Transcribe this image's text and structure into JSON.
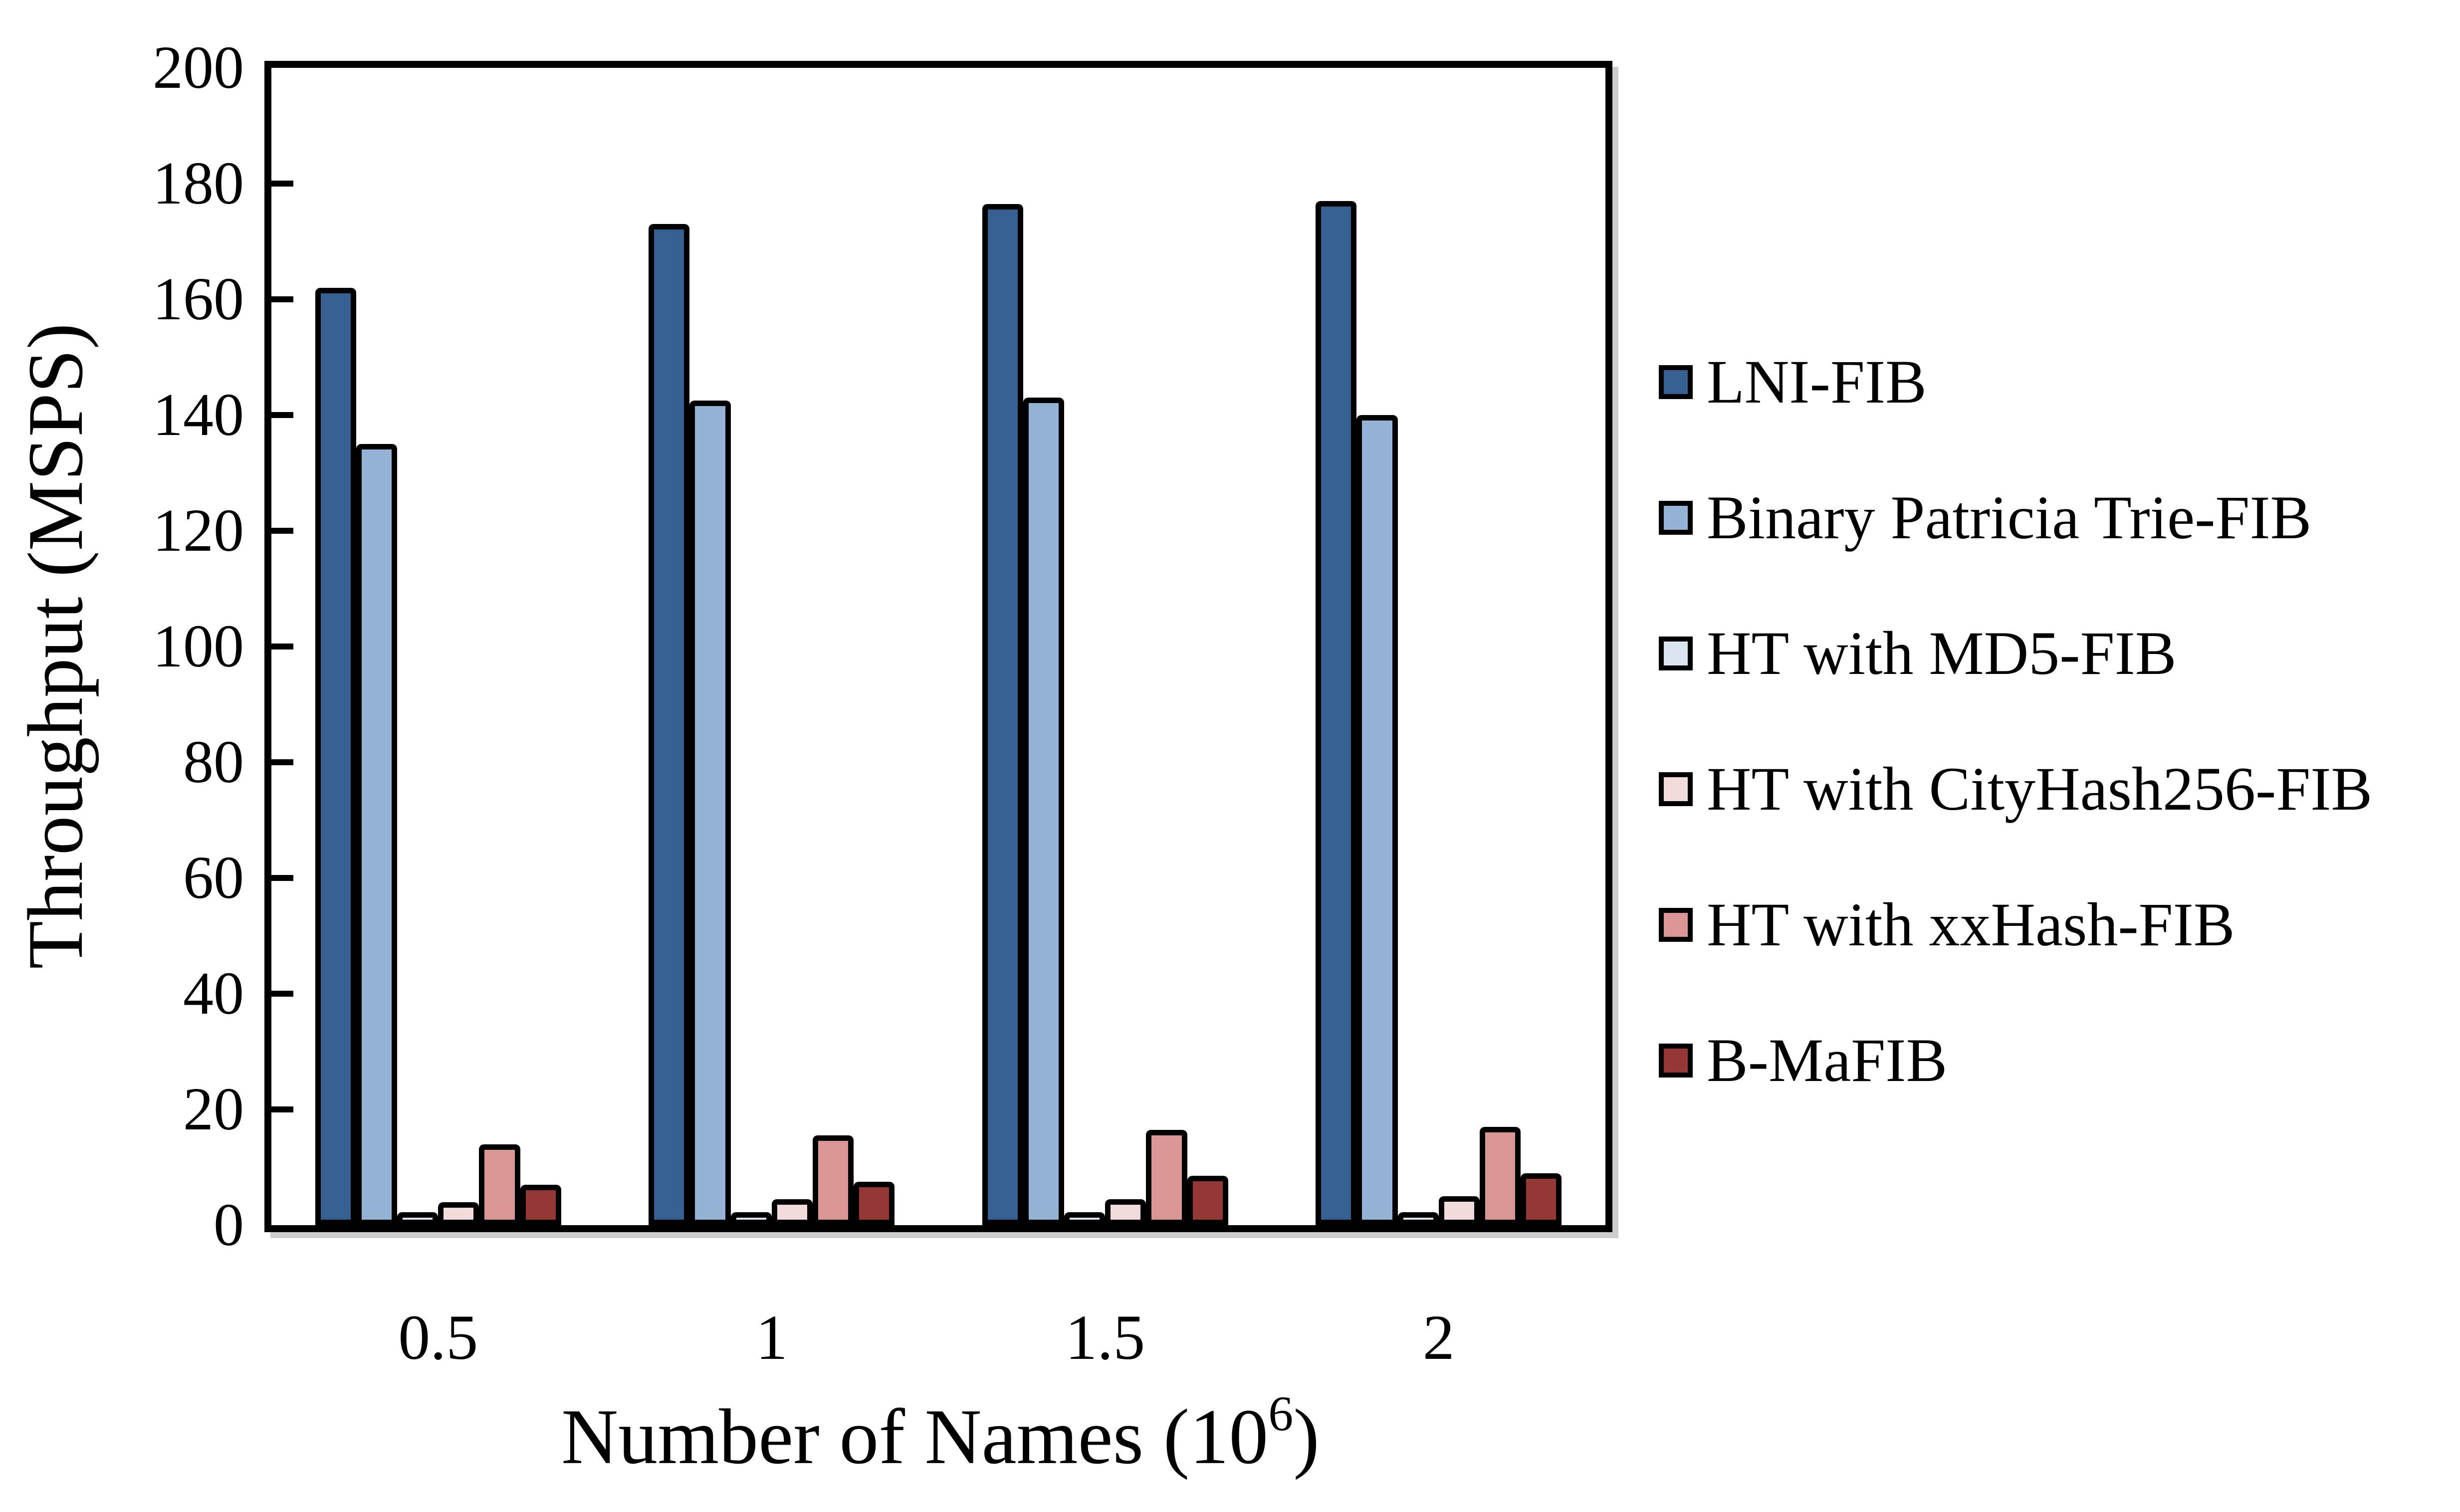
{
  "chart_data": {
    "type": "bar",
    "title": "",
    "ylabel": "Throughput  (MSPS)",
    "xlabel_prefix": "Number of Names  (10",
    "xlabel_sup": "6",
    "xlabel_suffix": ")",
    "categories": [
      "0.5",
      "1",
      "1.5",
      "2"
    ],
    "ylim": [
      0,
      200
    ],
    "ytick_step": 20,
    "grid": false,
    "legend_position": "right",
    "bar_outline_color": "#000000",
    "series": [
      {
        "name": "LNI-FIB",
        "color": "#376092",
        "values": [
          162,
          173,
          176.5,
          177
        ]
      },
      {
        "name": "Binary Patricia Trie-FIB",
        "color": "#95B3D7",
        "values": [
          135,
          142.5,
          143,
          140
        ]
      },
      {
        "name": "HT with MD5-FIB",
        "color": "#DBE5F1",
        "values": [
          1.5,
          2,
          2,
          2
        ]
      },
      {
        "name": "HT with CityHash256-FIB",
        "color": "#F2DCDB",
        "values": [
          4,
          4.5,
          4.5,
          5
        ]
      },
      {
        "name": "HT with xxHash-FIB",
        "color": "#D99694",
        "values": [
          14,
          15.5,
          16.5,
          17
        ]
      },
      {
        "name": "B-MaFIB",
        "color": "#953735",
        "values": [
          7,
          7.5,
          8.5,
          9
        ]
      }
    ]
  }
}
